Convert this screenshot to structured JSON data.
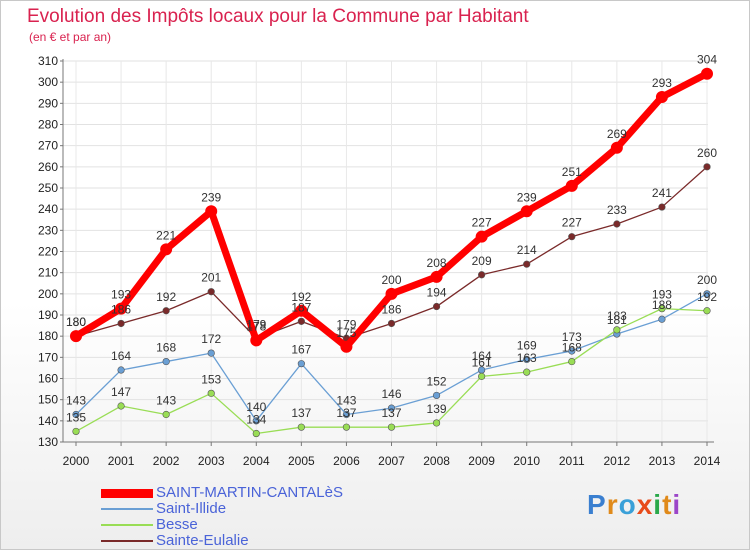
{
  "header": {
    "title": "Evolution des Impôts locaux pour la Commune par Habitant",
    "subtitle": "(en € et par an)"
  },
  "logo": {
    "text": "Proxiti"
  },
  "chart_data": {
    "type": "line",
    "title": "Evolution des Impôts locaux pour la Commune par Habitant",
    "subtitle": "(en € et par an)",
    "xlabel": "",
    "ylabel": "",
    "ylim": [
      130,
      310
    ],
    "yticks": [
      130,
      140,
      150,
      160,
      170,
      180,
      190,
      200,
      210,
      220,
      230,
      240,
      250,
      260,
      270,
      280,
      290,
      300,
      310
    ],
    "categories": [
      "2000",
      "2001",
      "2002",
      "2003",
      "2004",
      "2005",
      "2006",
      "2007",
      "2008",
      "2009",
      "2010",
      "2011",
      "2012",
      "2013",
      "2014"
    ],
    "legend_position": "bottom-left",
    "series": [
      {
        "name": "SAINT-MARTIN-CANTALèS",
        "color": "#ff0000",
        "values": [
          180,
          193,
          221,
          239,
          178,
          192,
          175,
          200,
          208,
          227,
          239,
          251,
          269,
          293,
          304
        ]
      },
      {
        "name": "Saint-Illide",
        "color": "#6a9fd4",
        "values": [
          143,
          164,
          168,
          172,
          140,
          167,
          143,
          146,
          152,
          164,
          169,
          173,
          181,
          188,
          200
        ]
      },
      {
        "name": "Besse",
        "color": "#99dd55",
        "values": [
          135,
          147,
          143,
          153,
          134,
          137,
          137,
          137,
          139,
          161,
          163,
          168,
          183,
          193,
          192
        ]
      },
      {
        "name": "Sainte-Eulalie",
        "color": "#7a2a2a",
        "values": [
          180,
          186,
          192,
          201,
          179,
          187,
          179,
          186,
          194,
          209,
          214,
          227,
          233,
          241,
          260
        ]
      }
    ]
  }
}
